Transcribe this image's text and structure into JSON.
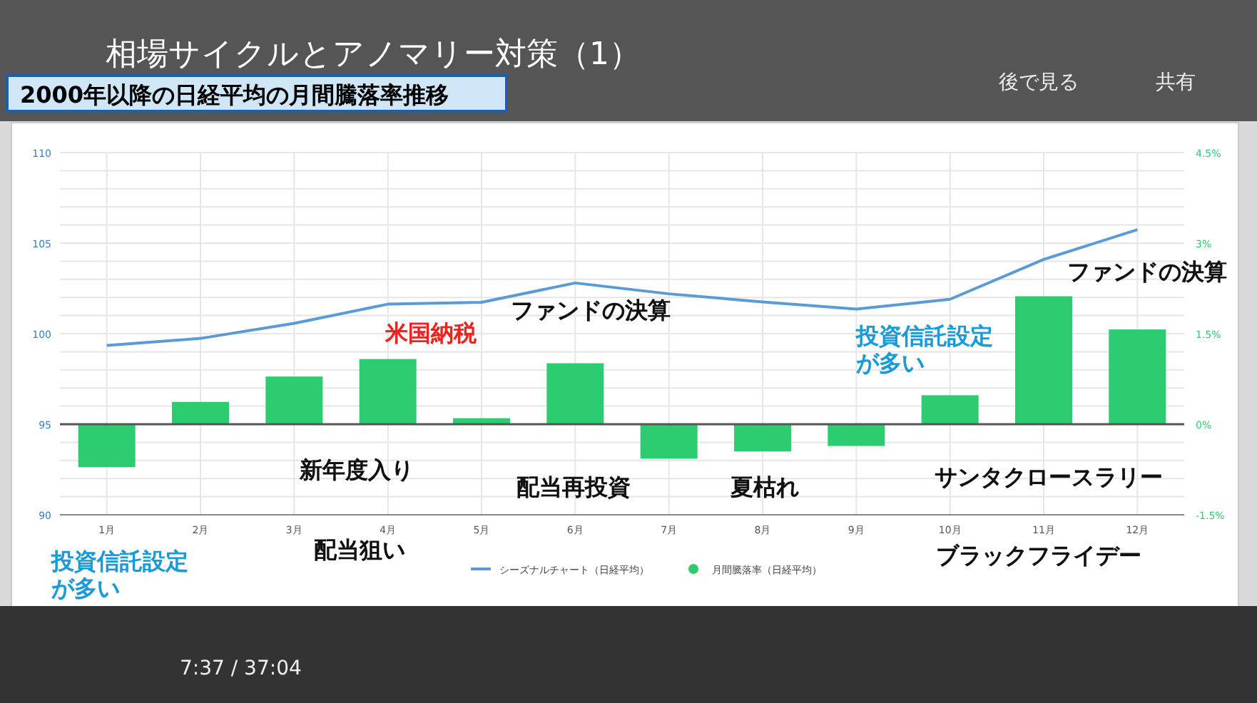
{
  "chart_data": {
    "type": "bar",
    "title": "相場サイクルとアノマリー対策（1）",
    "subtitle": "2000年以降の日経平均の月間騰落率推移",
    "categories": [
      "1月",
      "2月",
      "3月",
      "4月",
      "5月",
      "6月",
      "7月",
      "8月",
      "9月",
      "10月",
      "11月",
      "12月"
    ],
    "series": [
      {
        "name": "シーズナルチャート（日経平均）",
        "type": "line",
        "color": "#5b9bd5",
        "values": [
          99.35,
          99.74,
          100.57,
          101.63,
          101.73,
          102.8,
          102.2,
          101.75,
          101.36,
          101.9,
          104.1,
          105.74
        ]
      },
      {
        "name": "月間騰落率（日経平均）",
        "type": "bar",
        "axis": "y2",
        "color": "#2ecc71",
        "values": [
          -0.71,
          0.37,
          0.79,
          1.08,
          0.1,
          1.01,
          -0.57,
          -0.45,
          -0.36,
          0.48,
          2.12,
          1.57
        ]
      }
    ],
    "ylim": [
      90,
      110
    ],
    "yticks": [
      90,
      {
        "value": 91,
        "label": null
      },
      {
        "value": 92,
        "label": null
      },
      {
        "value": 93,
        "label": null
      },
      {
        "value": 94,
        "label": null
      },
      95,
      {
        "value": 96,
        "label": null
      },
      {
        "value": 97,
        "label": null
      },
      {
        "value": 98,
        "label": null
      },
      {
        "value": 99,
        "label": null
      },
      100,
      {
        "value": 101,
        "label": null
      },
      {
        "value": 102,
        "label": null
      },
      {
        "value": 103,
        "label": null
      },
      {
        "value": 104,
        "label": null
      },
      105,
      {
        "value": 106,
        "label": null
      },
      {
        "value": 107,
        "label": null
      },
      {
        "value": 108,
        "label": null
      },
      {
        "value": 109,
        "label": null
      },
      110
    ],
    "y2lim": [
      -1.5,
      4.5
    ],
    "y2ticks": [
      {
        "value": -1.5,
        "label": "-1.5%"
      },
      {
        "value": 0,
        "label": "0%"
      },
      {
        "value": 1.5,
        "label": "1.5%"
      },
      {
        "value": 3,
        "label": "3%"
      },
      {
        "value": 4.5,
        "label": "4.5%"
      }
    ],
    "grid": true,
    "legend": "bottom",
    "marker": "none",
    "line_style": "solid",
    "annotations": [
      "米国納税",
      "ファンドの決算",
      "ファンドの決算",
      "投資信託設定が多い",
      "新年度入り",
      "配当再投資",
      "夏枯れ",
      "サンタクロースラリー",
      "配当狙い",
      "ブラックフライデー",
      "投資信託設定が多い",
      "後で見る",
      "共有",
      "7:37 / 37:04"
    ]
  }
}
